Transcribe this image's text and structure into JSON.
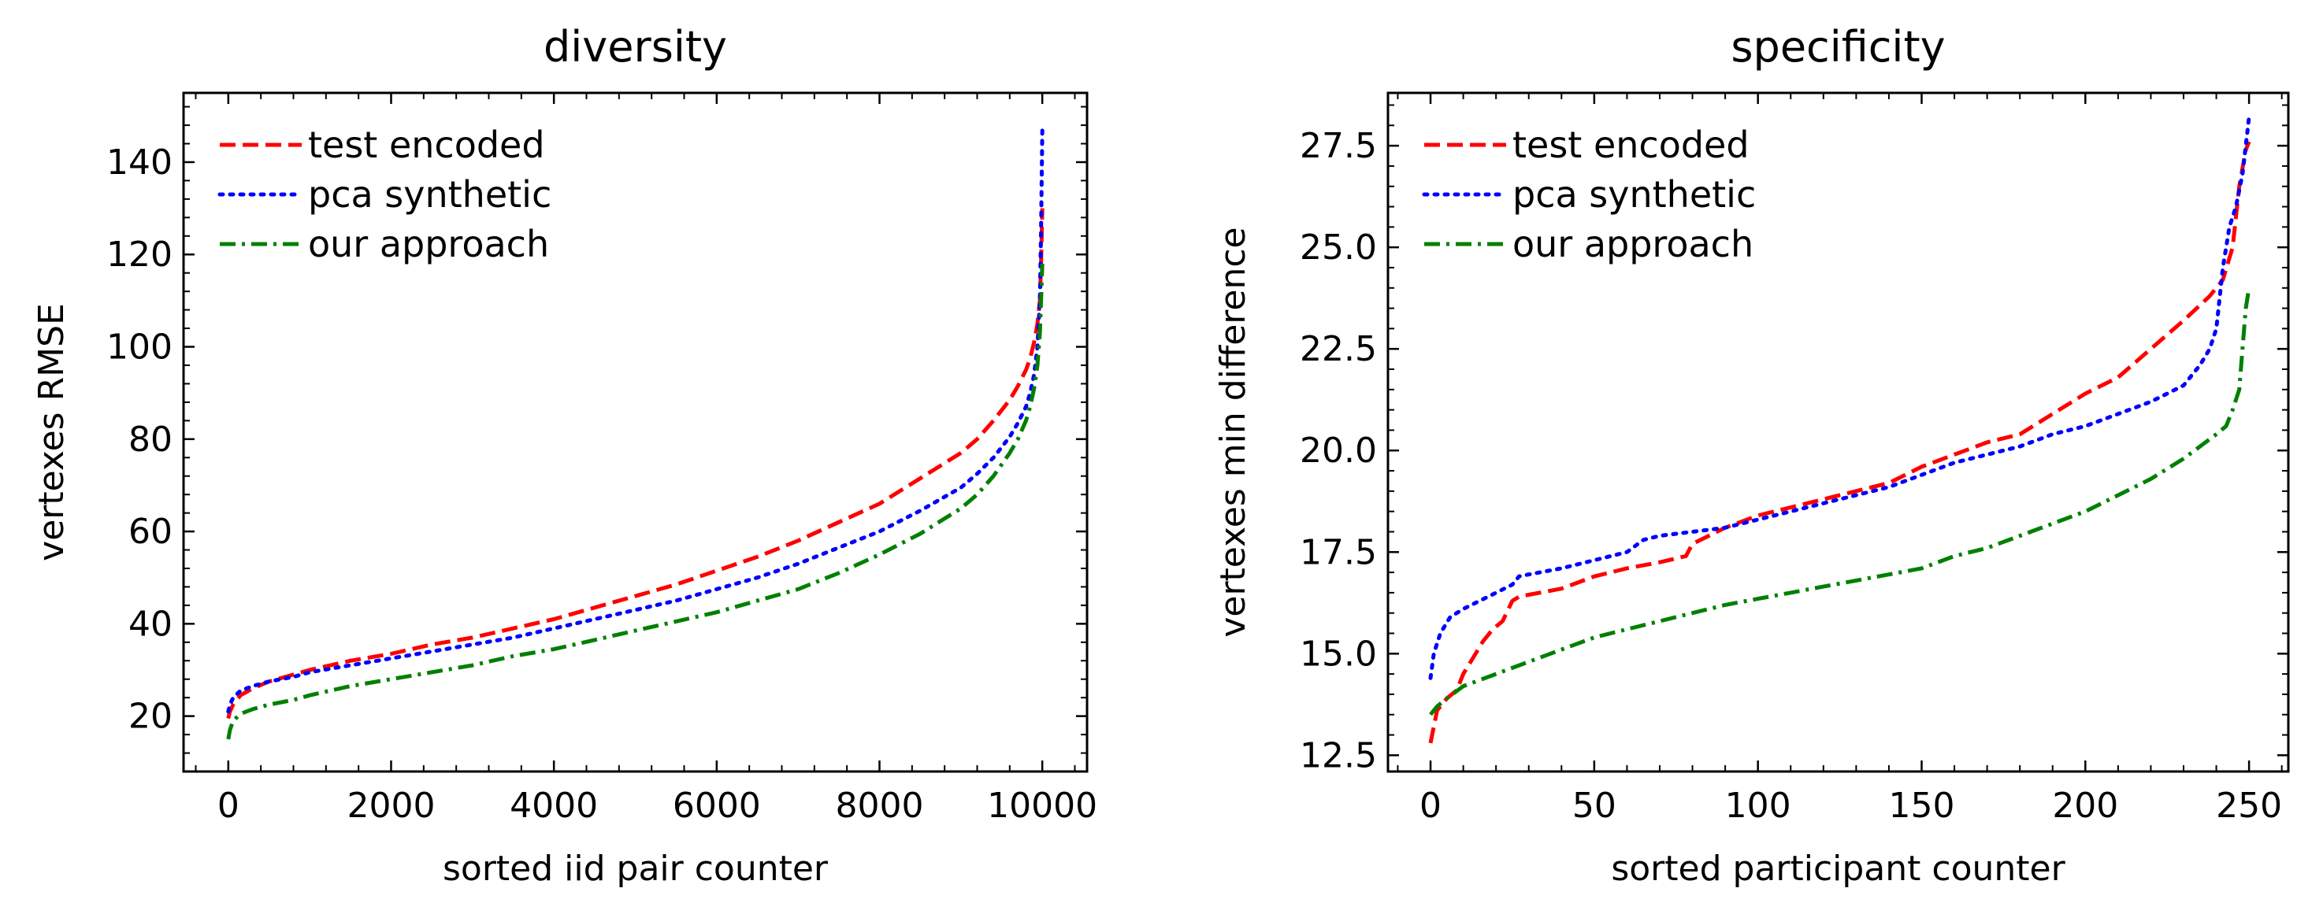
{
  "chart_data": [
    {
      "type": "line",
      "title": "diversity",
      "xlabel": "sorted iid pair counter",
      "ylabel": "vertexes RMSE",
      "xlim": [
        -550,
        10550
      ],
      "ylim": [
        8,
        155
      ],
      "xticks": [
        0,
        2000,
        4000,
        6000,
        8000,
        10000
      ],
      "yticks": [
        20,
        40,
        60,
        80,
        100,
        120,
        140
      ],
      "xtick_labels": [
        "0",
        "2000",
        "4000",
        "6000",
        "8000",
        "10000"
      ],
      "ytick_labels": [
        "20",
        "40",
        "60",
        "80",
        "100",
        "120",
        "140"
      ],
      "grid": false,
      "legend_position": "upper-left",
      "series": [
        {
          "name": "test encoded",
          "color": "#ff0000",
          "style": "dashed",
          "x": [
            0,
            20,
            60,
            150,
            300,
            500,
            800,
            1000,
            1500,
            2000,
            2500,
            3000,
            3500,
            4000,
            4500,
            5000,
            5500,
            6000,
            6500,
            7000,
            7500,
            8000,
            8500,
            9000,
            9200,
            9400,
            9600,
            9700,
            9800,
            9850,
            9900,
            9940,
            9970,
            9985,
            10000
          ],
          "y": [
            19.5,
            21,
            22.5,
            24.5,
            26,
            27.5,
            29,
            30,
            32,
            33.5,
            35.5,
            37,
            39,
            41,
            43.5,
            46,
            48.5,
            51.5,
            54.5,
            58,
            62,
            66,
            71.5,
            77,
            80,
            84,
            88.5,
            91.5,
            95,
            97.5,
            101,
            105,
            110,
            118,
            130
          ]
        },
        {
          "name": "pca synthetic",
          "color": "#0000ff",
          "style": "dotted",
          "x": [
            0,
            20,
            60,
            150,
            300,
            500,
            800,
            1000,
            1500,
            2000,
            2500,
            3000,
            3500,
            4000,
            4500,
            5000,
            5500,
            6000,
            6500,
            7000,
            7500,
            8000,
            8500,
            9000,
            9200,
            9400,
            9600,
            9700,
            9800,
            9850,
            9900,
            9940,
            9970,
            9985,
            10000
          ],
          "y": [
            21,
            22.5,
            24,
            25.5,
            26.5,
            27.5,
            28.5,
            29.5,
            31,
            32.5,
            34,
            35.5,
            37,
            39,
            41,
            43,
            45,
            47.5,
            50,
            53,
            56.5,
            60,
            64.5,
            69.5,
            72.5,
            76,
            80.5,
            83.5,
            87,
            90,
            94,
            100,
            110,
            125,
            147
          ]
        },
        {
          "name": "our approach",
          "color": "#008000",
          "style": "dashdot",
          "x": [
            0,
            20,
            60,
            150,
            300,
            500,
            800,
            1000,
            1500,
            2000,
            2500,
            3000,
            3500,
            4000,
            4500,
            5000,
            5500,
            6000,
            6500,
            7000,
            7500,
            8000,
            8500,
            9000,
            9200,
            9400,
            9600,
            9700,
            9800,
            9850,
            9900,
            9940,
            9970,
            9985,
            10000
          ],
          "y": [
            15,
            17,
            19,
            20.5,
            21.5,
            22.5,
            23.5,
            24.5,
            26.5,
            28,
            29.5,
            31,
            33,
            34.5,
            36.5,
            38.5,
            40.5,
            42.5,
            45,
            47.5,
            51,
            55,
            59.5,
            65,
            68,
            72,
            77,
            80,
            84,
            87,
            91,
            96,
            103,
            110,
            118
          ]
        }
      ]
    },
    {
      "type": "line",
      "title": "specificity",
      "xlabel": "sorted participant counter",
      "ylabel": "vertexes min difference",
      "xlim": [
        -13,
        262
      ],
      "ylim": [
        12.1,
        28.8
      ],
      "xticks": [
        0,
        50,
        100,
        150,
        200,
        250
      ],
      "yticks": [
        12.5,
        15.0,
        17.5,
        20.0,
        22.5,
        25.0,
        27.5
      ],
      "xtick_labels": [
        "0",
        "50",
        "100",
        "150",
        "200",
        "250"
      ],
      "ytick_labels": [
        "12.5",
        "15.0",
        "17.5",
        "20.0",
        "22.5",
        "25.0",
        "27.5"
      ],
      "grid": false,
      "legend_position": "upper-left",
      "series": [
        {
          "name": "test encoded",
          "color": "#ff0000",
          "style": "dashed",
          "x": [
            0,
            2,
            5,
            8,
            10,
            13,
            16,
            19,
            22,
            25,
            27,
            30,
            40,
            50,
            60,
            70,
            78,
            80,
            85,
            90,
            100,
            110,
            120,
            130,
            140,
            150,
            160,
            170,
            180,
            190,
            200,
            210,
            220,
            230,
            238,
            242,
            245,
            247,
            249,
            250
          ],
          "y": [
            12.8,
            13.6,
            13.9,
            14.1,
            14.5,
            14.9,
            15.3,
            15.6,
            15.8,
            16.3,
            16.4,
            16.45,
            16.6,
            16.9,
            17.1,
            17.25,
            17.4,
            17.7,
            17.9,
            18.1,
            18.4,
            18.6,
            18.8,
            19.0,
            19.2,
            19.6,
            19.9,
            20.2,
            20.4,
            20.9,
            21.4,
            21.8,
            22.5,
            23.2,
            23.8,
            24.2,
            25.0,
            26.5,
            27.4,
            27.6
          ]
        },
        {
          "name": "pca synthetic",
          "color": "#0000ff",
          "style": "dotted",
          "x": [
            0,
            1,
            3,
            6,
            10,
            15,
            20,
            25,
            27,
            30,
            40,
            50,
            60,
            65,
            70,
            80,
            90,
            100,
            110,
            120,
            130,
            140,
            150,
            160,
            170,
            180,
            190,
            200,
            210,
            220,
            230,
            235,
            238,
            240,
            242,
            244,
            246,
            248,
            250
          ],
          "y": [
            14.4,
            15.0,
            15.5,
            15.9,
            16.1,
            16.3,
            16.5,
            16.7,
            16.9,
            16.95,
            17.1,
            17.3,
            17.5,
            17.8,
            17.9,
            18.0,
            18.1,
            18.3,
            18.5,
            18.7,
            18.9,
            19.1,
            19.4,
            19.7,
            19.9,
            20.1,
            20.4,
            20.6,
            20.9,
            21.2,
            21.6,
            22.1,
            22.5,
            23.0,
            24.5,
            25.5,
            26.0,
            26.8,
            28.2
          ]
        },
        {
          "name": "our approach",
          "color": "#008000",
          "style": "dashdot",
          "x": [
            0,
            2,
            5,
            10,
            20,
            30,
            40,
            50,
            60,
            70,
            80,
            90,
            100,
            110,
            120,
            130,
            140,
            150,
            160,
            170,
            180,
            190,
            200,
            210,
            220,
            230,
            235,
            240,
            243,
            245,
            247,
            248,
            249,
            250
          ],
          "y": [
            13.5,
            13.7,
            13.9,
            14.2,
            14.5,
            14.8,
            15.1,
            15.4,
            15.6,
            15.8,
            16.0,
            16.2,
            16.35,
            16.5,
            16.65,
            16.8,
            16.95,
            17.1,
            17.4,
            17.6,
            17.9,
            18.2,
            18.5,
            18.9,
            19.3,
            19.8,
            20.1,
            20.4,
            20.6,
            21.0,
            21.5,
            22.5,
            23.5,
            24.0
          ]
        }
      ]
    }
  ]
}
